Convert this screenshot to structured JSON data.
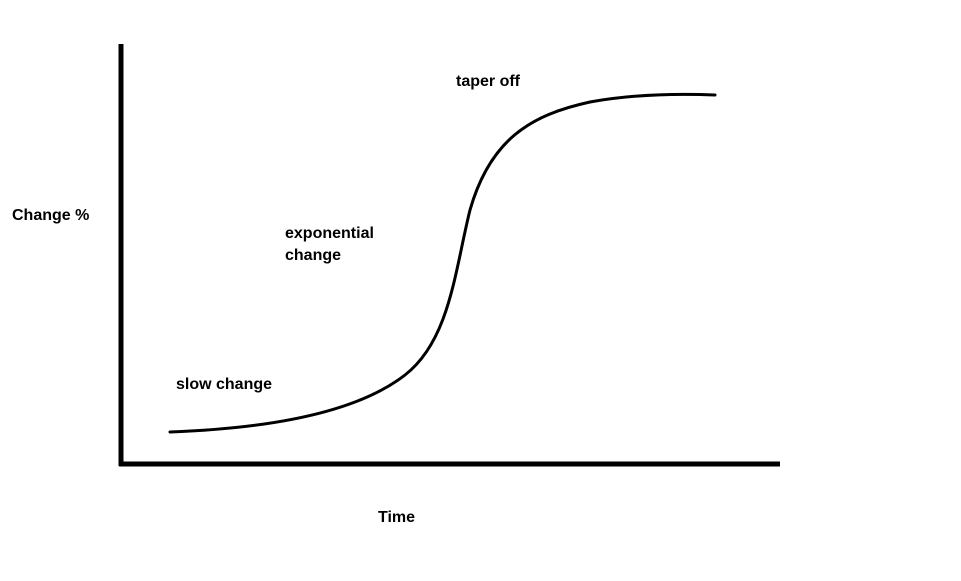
{
  "diagram": {
    "type": "s-curve",
    "axes": {
      "ylabel": "Change %",
      "xlabel": "Time"
    },
    "annotations": {
      "slow": "slow change",
      "exponential_line1": "exponential",
      "exponential_line2": "change",
      "taper": "taper off"
    },
    "colors": {
      "ink": "#000000",
      "background": "#ffffff"
    }
  }
}
